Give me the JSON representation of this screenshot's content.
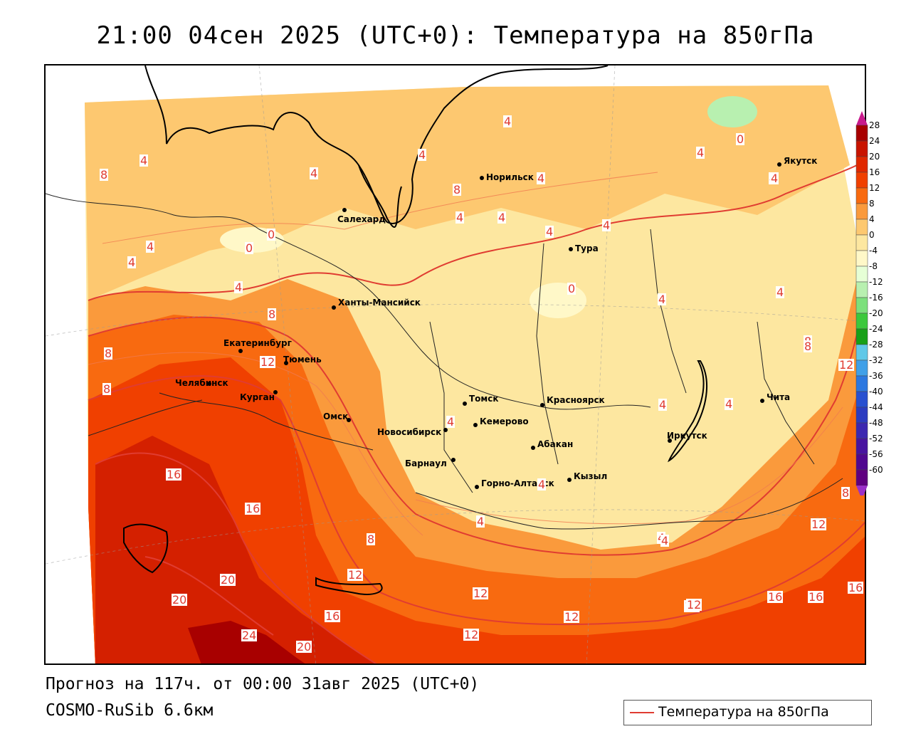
{
  "title": "21:00 04сен 2025 (UTC+0): Температура на 850гПа",
  "forecast": "Прогноз на 117ч. от 00:00 31авг 2025 (UTC+0)",
  "model": "COSMO-RuSib 6.6км",
  "legend": {
    "label": "Температура на 850гПа",
    "line_color": "#e03c31"
  },
  "colorbar": {
    "ticks": [
      "28",
      "24",
      "20",
      "16",
      "12",
      "8",
      "4",
      "0",
      "-4",
      "-8",
      "-12",
      "-16",
      "-20",
      "-24",
      "-28",
      "-32",
      "-36",
      "-40",
      "-44",
      "-48",
      "-52",
      "-56",
      "-60"
    ],
    "colors": [
      "#a80000",
      "#c81400",
      "#e02800",
      "#f04000",
      "#f86a10",
      "#fa9a3c",
      "#fdc870",
      "#fde7a0",
      "#fff8c8",
      "#e6ffd6",
      "#b8f0b0",
      "#7ce07c",
      "#3cc83c",
      "#18a018",
      "#60c8e8",
      "#40a0e8",
      "#2c78e0",
      "#2850d0",
      "#2c3cc0",
      "#3c28b0",
      "#4814a0",
      "#500890",
      "#600080"
    ]
  },
  "cities": [
    {
      "name": "Норильск"
    },
    {
      "name": "Якутск"
    },
    {
      "name": "Салехард"
    },
    {
      "name": "Тура"
    },
    {
      "name": "Ханты-Мансийск"
    },
    {
      "name": "Екатеринбург"
    },
    {
      "name": "Тюмень"
    },
    {
      "name": "Челябинск"
    },
    {
      "name": "Курган"
    },
    {
      "name": "Омск"
    },
    {
      "name": "Томск"
    },
    {
      "name": "Красноярск"
    },
    {
      "name": "Новосибирск"
    },
    {
      "name": "Кемерово"
    },
    {
      "name": "Абакан"
    },
    {
      "name": "Иркутск"
    },
    {
      "name": "Чита"
    },
    {
      "name": "Барнаул"
    },
    {
      "name": "Горно-Алтайск"
    },
    {
      "name": "Кызыл"
    }
  ],
  "isolabels": [
    "4",
    "4",
    "4",
    "4",
    "0",
    "4",
    "8",
    "4",
    "4",
    "4",
    "4",
    "4",
    "0",
    "0",
    "4",
    "4",
    "4",
    "0",
    "4",
    "4",
    "8",
    "8",
    "8",
    "12",
    "8",
    "12",
    "16",
    "16",
    "8",
    "20",
    "20",
    "24",
    "20",
    "16",
    "12",
    "12",
    "12",
    "12",
    "12",
    "8",
    "4",
    "8",
    "12",
    "4",
    "4",
    "8",
    "12",
    "16",
    "16",
    "16",
    "12",
    "4",
    "4",
    "4",
    "4",
    "4",
    "4"
  ]
}
